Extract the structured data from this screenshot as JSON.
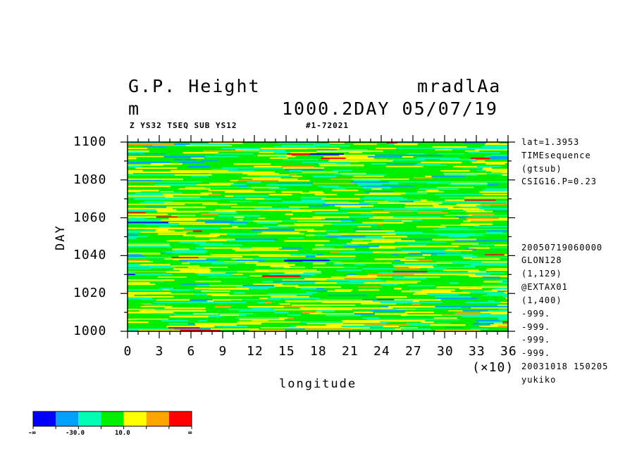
{
  "header": {
    "title_left": "G.P. Height",
    "title_right": "mradlAa",
    "unit": "m",
    "subtitle_right": "1000.2DAY 05/07/19",
    "info_left": "Z YS32 TSEQ SUB YS12",
    "info_right": "#1-72021"
  },
  "side_info": {
    "top": [
      "lat=1.3953",
      "TIMEsequence",
      "(gtsub)",
      "CSIG16.P=0.23"
    ],
    "bottom": [
      "20050719060000",
      "GLON128",
      "(1,129)",
      "@EXTAX01",
      "(1,400)",
      "-999.",
      "-999.",
      "-999.",
      "-999.",
      "20031018 150205",
      "yukiko"
    ]
  },
  "colors": {
    "levels": [
      "#0000ff",
      "#00a0ff",
      "#00ffb4",
      "#00ee00",
      "#ffff00",
      "#ffa500",
      "#ff0000"
    ]
  },
  "colorbar": {
    "labels": [
      "-∞",
      "-30.0",
      "10.0",
      "∞"
    ]
  },
  "chart_data": {
    "type": "heatmap",
    "title": "G.P. Height",
    "xlabel": "longitude",
    "ylabel": "DAY",
    "x_scale_label": "(×10)",
    "xlim": [
      0,
      36
    ],
    "ylim": [
      1000,
      1100
    ],
    "x_ticks": [
      "0",
      "3",
      "6",
      "9",
      "12",
      "15",
      "18",
      "21",
      "24",
      "27",
      "30",
      "33",
      "36"
    ],
    "y_ticks": [
      "1000",
      "1020",
      "1040",
      "1060",
      "1080",
      "1100"
    ],
    "levels": [
      -50,
      -30,
      -10,
      10,
      30,
      50
    ],
    "dominant_fields": [
      {
        "color": "#00ee00",
        "share": 0.55
      },
      {
        "color": "#ffff00",
        "share": 0.2
      },
      {
        "color": "#00ffb4",
        "share": 0.18
      },
      {
        "color": "#00a0ff",
        "share": 0.04
      },
      {
        "color": "#ffa500",
        "share": 0.02
      },
      {
        "color": "#ff0000",
        "share": 0.005
      },
      {
        "color": "#0000ff",
        "share": 0.005
      }
    ]
  }
}
